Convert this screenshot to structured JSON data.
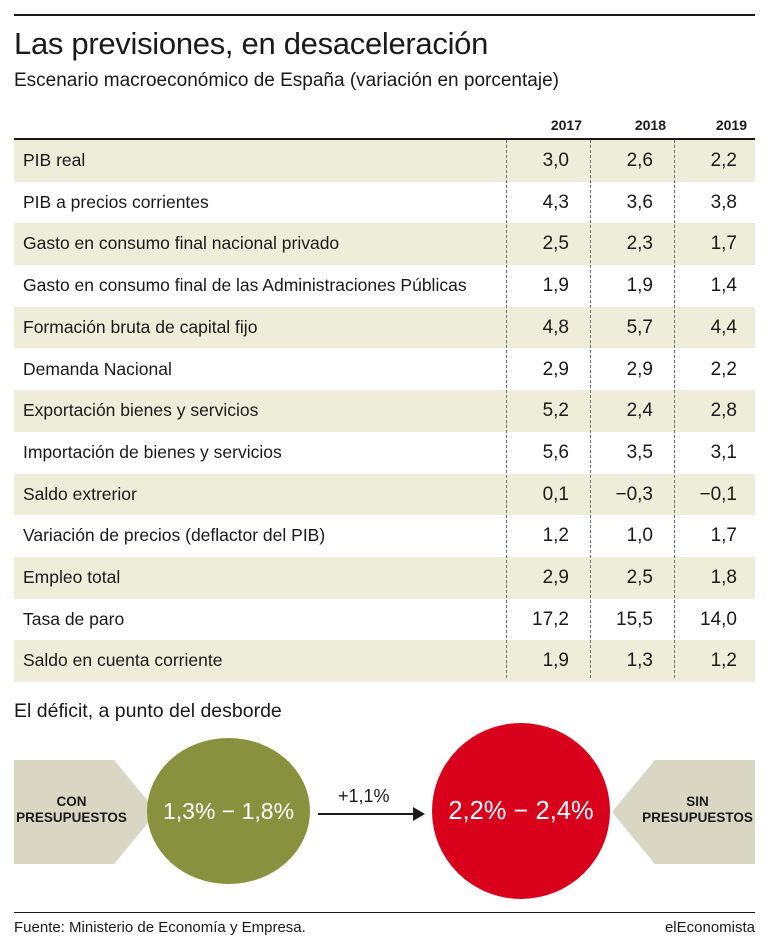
{
  "title": "Las previsiones, en desaceleración",
  "subtitle": "Escenario macroeconómico de España (variación en porcentaje)",
  "chart_data": [
    {
      "type": "table",
      "title": "Las previsiones, en desaceleración",
      "subtitle": "Escenario macroeconómico de España (variación en porcentaje)",
      "columns": [
        "2017",
        "2018",
        "2019"
      ],
      "rows": [
        {
          "label": "PIB real",
          "values": [
            "3,0",
            "2,6",
            "2,2"
          ]
        },
        {
          "label": "PIB a precios corrientes",
          "values": [
            "4,3",
            "3,6",
            "3,8"
          ]
        },
        {
          "label": "Gasto en consumo final nacional privado",
          "values": [
            "2,5",
            "2,3",
            "1,7"
          ]
        },
        {
          "label": "Gasto en consumo final de las Administraciones Públicas",
          "values": [
            "1,9",
            "1,9",
            "1,4"
          ]
        },
        {
          "label": "Formación bruta de capital fijo",
          "values": [
            "4,8",
            "5,7",
            "4,4"
          ]
        },
        {
          "label": "Demanda Nacional",
          "values": [
            "2,9",
            "2,9",
            "2,2"
          ]
        },
        {
          "label": "Exportación bienes y servicios",
          "values": [
            "5,2",
            "2,4",
            "2,8"
          ]
        },
        {
          "label": "Importación de bienes y servicios",
          "values": [
            "5,6",
            "3,5",
            "3,1"
          ]
        },
        {
          "label": "Saldo extrerior",
          "values": [
            "0,1",
            "−0,3",
            "−0,1"
          ]
        },
        {
          "label": "Variación de precios (deflactor del PIB)",
          "values": [
            "1,2",
            "1,0",
            "1,7"
          ]
        },
        {
          "label": "Empleo total",
          "values": [
            "2,9",
            "2,5",
            "1,8"
          ]
        },
        {
          "label": "Tasa de paro",
          "values": [
            "17,2",
            "15,5",
            "14,0"
          ]
        },
        {
          "label": "Saldo en cuenta corriente",
          "values": [
            "1,9",
            "1,3",
            "1,2"
          ]
        }
      ]
    },
    {
      "type": "diagram",
      "title": "El déficit, a punto del desborde",
      "left_label_line1": "CON",
      "left_label_line2": "PRESUPUESTOS",
      "left_value": "1,3% − 1,8%",
      "change": "+1,1%",
      "right_value": "2,2% − 2,4%",
      "right_label_line1": "SIN",
      "right_label_line2": "PRESUPUESTOS"
    }
  ],
  "colors": {
    "row_shade": "#eeedd9",
    "olive": "#88913d",
    "red": "#d9001b",
    "chevron": "#d9d7c3"
  },
  "footer": {
    "source": "Fuente: Ministerio de Economía y Empresa.",
    "brand": "elEconomista"
  }
}
